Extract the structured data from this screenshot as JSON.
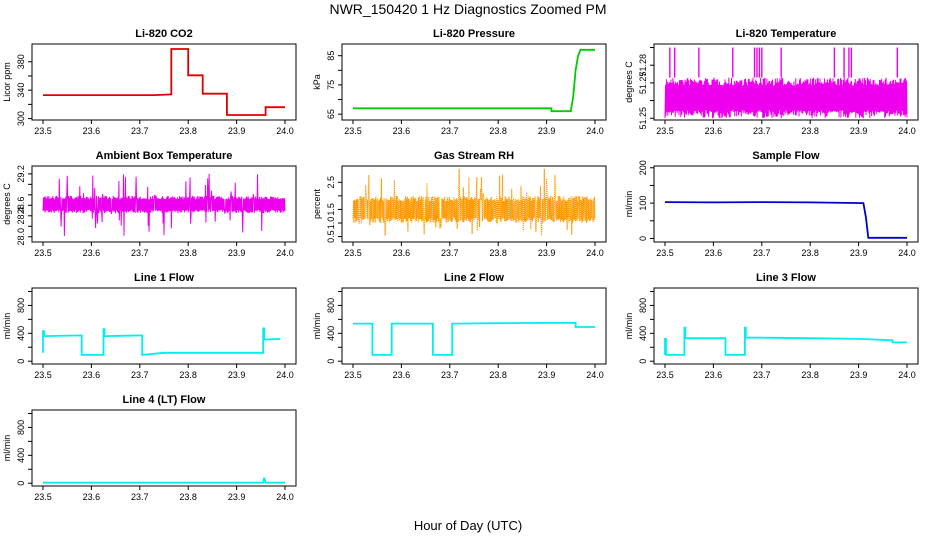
{
  "page_title": "NWR_150420  1 Hz Diagnostics Zoomed PM",
  "x_axis_label": "Hour of Day (UTC)",
  "chart_data": [
    {
      "type": "line",
      "title": "Li-820 CO2",
      "xlabel": "",
      "ylabel": "Licor ppm",
      "xlim": [
        23.5,
        24.0
      ],
      "ylim": [
        298,
        405
      ],
      "xticks": [
        "23.5",
        "23.6",
        "23.7",
        "23.8",
        "23.9",
        "24.0"
      ],
      "yticks": [
        300,
        320,
        340,
        360,
        380
      ],
      "ytick_labels": [
        "300",
        "",
        "340",
        "",
        "380"
      ],
      "color": "#dd0000",
      "series": [
        {
          "x": [
            23.5,
            23.55,
            23.6,
            23.65,
            23.69,
            23.69,
            23.73,
            23.73,
            23.765,
            23.765,
            23.8,
            23.8,
            23.83,
            23.83,
            23.88,
            23.88,
            23.9,
            23.93,
            23.96,
            23.96,
            23.97,
            23.985,
            24.0
          ],
          "y": [
            333,
            333,
            333,
            333,
            333,
            333,
            333,
            333,
            334,
            398,
            398,
            361,
            361,
            335,
            335,
            305,
            305,
            305,
            305,
            316,
            316,
            316,
            316
          ]
        }
      ]
    },
    {
      "type": "line",
      "title": "Li-820 Pressure",
      "xlabel": "",
      "ylabel": "kPa",
      "xlim": [
        23.5,
        24.0
      ],
      "ylim": [
        63,
        89
      ],
      "xticks": [
        "23.5",
        "23.6",
        "23.7",
        "23.8",
        "23.9",
        "24.0"
      ],
      "yticks": [
        65,
        70,
        75,
        80,
        85
      ],
      "ytick_labels": [
        "65",
        "",
        "75",
        "",
        "85"
      ],
      "color": "#00cc00",
      "series": [
        {
          "x": [
            23.5,
            23.6,
            23.7,
            23.8,
            23.9,
            23.91,
            23.91,
            23.95,
            23.955,
            23.96,
            23.965,
            23.97,
            24.0
          ],
          "y": [
            67,
            67,
            67,
            67,
            67,
            67,
            66,
            66,
            71,
            80,
            85,
            87,
            87
          ]
        }
      ]
    },
    {
      "type": "line",
      "title": "Li-820 Temperature",
      "xlabel": "",
      "ylabel": "degrees C",
      "xlim": [
        23.5,
        24.0
      ],
      "ylim": [
        51.249,
        51.292
      ],
      "xticks": [
        "23.5",
        "23.6",
        "23.7",
        "23.8",
        "23.9",
        "24.0"
      ],
      "yticks": [
        51.25,
        51.26,
        51.27,
        51.28,
        51.29
      ],
      "ytick_labels": [
        "51.25",
        "",
        "51.27",
        "51.28",
        ""
      ],
      "color": "#ee00ee",
      "band": {
        "low": 51.25,
        "high": 51.273
      },
      "spikes_x": [
        23.51,
        23.52,
        23.57,
        23.64,
        23.685,
        23.69,
        23.695,
        23.7,
        23.74,
        23.85,
        23.87,
        23.88,
        23.885,
        23.98
      ],
      "spike_top": 51.29
    },
    {
      "type": "line",
      "title": "Ambient Box Temperature",
      "xlabel": "",
      "ylabel": "degrees C",
      "xlim": [
        23.5,
        24.0
      ],
      "ylim": [
        27.9,
        29.35
      ],
      "xticks": [
        "23.5",
        "23.6",
        "23.7",
        "23.8",
        "23.9",
        "24.0"
      ],
      "yticks": [
        28.0,
        28.2,
        28.4,
        28.6,
        28.8,
        29.0,
        29.2
      ],
      "ytick_labels": [
        "28.0",
        "",
        "28.4",
        "28.6",
        "",
        "",
        "29.2"
      ],
      "color": "#ee00ee",
      "band": {
        "low": 28.45,
        "high": 28.78
      },
      "noise_min": 28.0,
      "noise_max": 29.2
    },
    {
      "type": "line",
      "title": "Gas Stream RH",
      "xlabel": "",
      "ylabel": "percent",
      "xlim": [
        23.5,
        24.0
      ],
      "ylim": [
        0.3,
        3.1
      ],
      "xticks": [
        "23.5",
        "23.6",
        "23.7",
        "23.8",
        "23.9",
        "24.0"
      ],
      "yticks": [
        0.5,
        1.0,
        1.5,
        2.0,
        2.5
      ],
      "ytick_labels": [
        "0.5",
        "1.0",
        "1.5",
        "",
        "2.5"
      ],
      "color": "#ff9900",
      "band": {
        "low": 1.0,
        "high": 2.0
      },
      "noise_min": 0.5,
      "noise_max": 3.0
    },
    {
      "type": "line",
      "title": "Sample Flow",
      "xlabel": "",
      "ylabel": "ml/min",
      "xlim": [
        23.5,
        24.0
      ],
      "ylim": [
        -10,
        205
      ],
      "xticks": [
        "23.5",
        "23.6",
        "23.7",
        "23.8",
        "23.9",
        "24.0"
      ],
      "yticks": [
        0,
        50,
        100,
        150,
        200
      ],
      "ytick_labels": [
        "0",
        "",
        "100",
        "",
        "200"
      ],
      "color": "#0000cc",
      "series": [
        {
          "x": [
            23.5,
            23.6,
            23.7,
            23.8,
            23.91,
            23.915,
            23.92,
            24.0
          ],
          "y": [
            103,
            102,
            103,
            102,
            100,
            60,
            2,
            2
          ]
        }
      ]
    },
    {
      "type": "line",
      "title": "Line 1 Flow",
      "xlabel": "",
      "ylabel": "ml/min",
      "xlim": [
        23.5,
        24.0
      ],
      "ylim": [
        -40,
        1050
      ],
      "xticks": [
        "23.5",
        "23.6",
        "23.7",
        "23.8",
        "23.9",
        "24.0"
      ],
      "yticks": [
        0,
        200,
        400,
        600,
        800,
        1000
      ],
      "ytick_labels": [
        "0",
        "",
        "400",
        "",
        "800",
        ""
      ],
      "color": "#00eeee",
      "series": [
        {
          "x": [
            23.5,
            23.5,
            23.502,
            23.502,
            23.58,
            23.58,
            23.625,
            23.625,
            23.627,
            23.627,
            23.705,
            23.705,
            23.75,
            23.85,
            23.955,
            23.955,
            23.957,
            23.957,
            23.99
          ],
          "y": [
            120,
            430,
            430,
            360,
            370,
            90,
            90,
            460,
            460,
            360,
            370,
            90,
            120,
            120,
            120,
            470,
            470,
            310,
            320
          ]
        }
      ]
    },
    {
      "type": "line",
      "title": "Line 2 Flow",
      "xlabel": "",
      "ylabel": "ml/min",
      "xlim": [
        23.5,
        24.0
      ],
      "ylim": [
        -40,
        1050
      ],
      "xticks": [
        "23.5",
        "23.6",
        "23.7",
        "23.8",
        "23.9",
        "24.0"
      ],
      "yticks": [
        0,
        200,
        400,
        600,
        800,
        1000
      ],
      "ytick_labels": [
        "0",
        "",
        "400",
        "",
        "800",
        ""
      ],
      "color": "#00eeee",
      "series": [
        {
          "x": [
            23.5,
            23.54,
            23.54,
            23.58,
            23.58,
            23.665,
            23.665,
            23.705,
            23.705,
            23.8,
            23.9,
            23.96,
            23.96,
            24.0
          ],
          "y": [
            540,
            540,
            90,
            90,
            540,
            540,
            90,
            90,
            540,
            545,
            550,
            550,
            490,
            490
          ]
        }
      ]
    },
    {
      "type": "line",
      "title": "Line 3 Flow",
      "xlabel": "",
      "ylabel": "ml/min",
      "xlim": [
        23.5,
        24.0
      ],
      "ylim": [
        -40,
        1050
      ],
      "xticks": [
        "23.5",
        "23.6",
        "23.7",
        "23.8",
        "23.9",
        "24.0"
      ],
      "yticks": [
        0,
        200,
        400,
        600,
        800,
        1000
      ],
      "ytick_labels": [
        "0",
        "",
        "400",
        "",
        "800",
        ""
      ],
      "color": "#00eeee",
      "series": [
        {
          "x": [
            23.5,
            23.5,
            23.502,
            23.502,
            23.54,
            23.54,
            23.542,
            23.542,
            23.625,
            23.625,
            23.665,
            23.665,
            23.667,
            23.667,
            23.8,
            23.9,
            23.97,
            23.97,
            24.0
          ],
          "y": [
            90,
            320,
            320,
            90,
            90,
            480,
            480,
            330,
            330,
            90,
            90,
            480,
            480,
            340,
            330,
            320,
            300,
            270,
            270
          ]
        }
      ]
    },
    {
      "type": "line",
      "title": "Line 4 (LT) Flow",
      "xlabel": "",
      "ylabel": "ml/min",
      "xlim": [
        23.5,
        24.0
      ],
      "ylim": [
        -40,
        1050
      ],
      "xticks": [
        "23.5",
        "23.6",
        "23.7",
        "23.8",
        "23.9",
        "24.0"
      ],
      "yticks": [
        0,
        200,
        400,
        600,
        800,
        1000
      ],
      "ytick_labels": [
        "0",
        "",
        "400",
        "",
        "800",
        ""
      ],
      "color": "#00eeee",
      "series": [
        {
          "x": [
            23.5,
            23.7,
            23.9,
            23.955,
            23.957,
            23.96,
            24.0
          ],
          "y": [
            8,
            8,
            8,
            8,
            80,
            8,
            8
          ]
        }
      ]
    }
  ]
}
